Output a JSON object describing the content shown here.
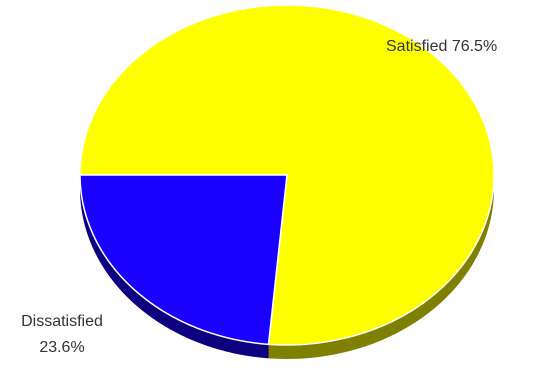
{
  "chart_data": {
    "type": "pie",
    "style": "3d",
    "slices": [
      {
        "label": "Satisfied",
        "value_label": "76.5%",
        "value": 76.5,
        "color": "#ffff00",
        "side_color": "#808000"
      },
      {
        "label": "Dissatisfied",
        "value_label": "23.6%",
        "value": 23.6,
        "color": "#1a00ff",
        "side_color": "#0c0080"
      }
    ],
    "legend": "none"
  },
  "labels": {
    "satisfied": "Satisfied 76.5%",
    "dissatisfied_line1": "Dissatisfied",
    "dissatisfied_line2": "23.6%"
  }
}
